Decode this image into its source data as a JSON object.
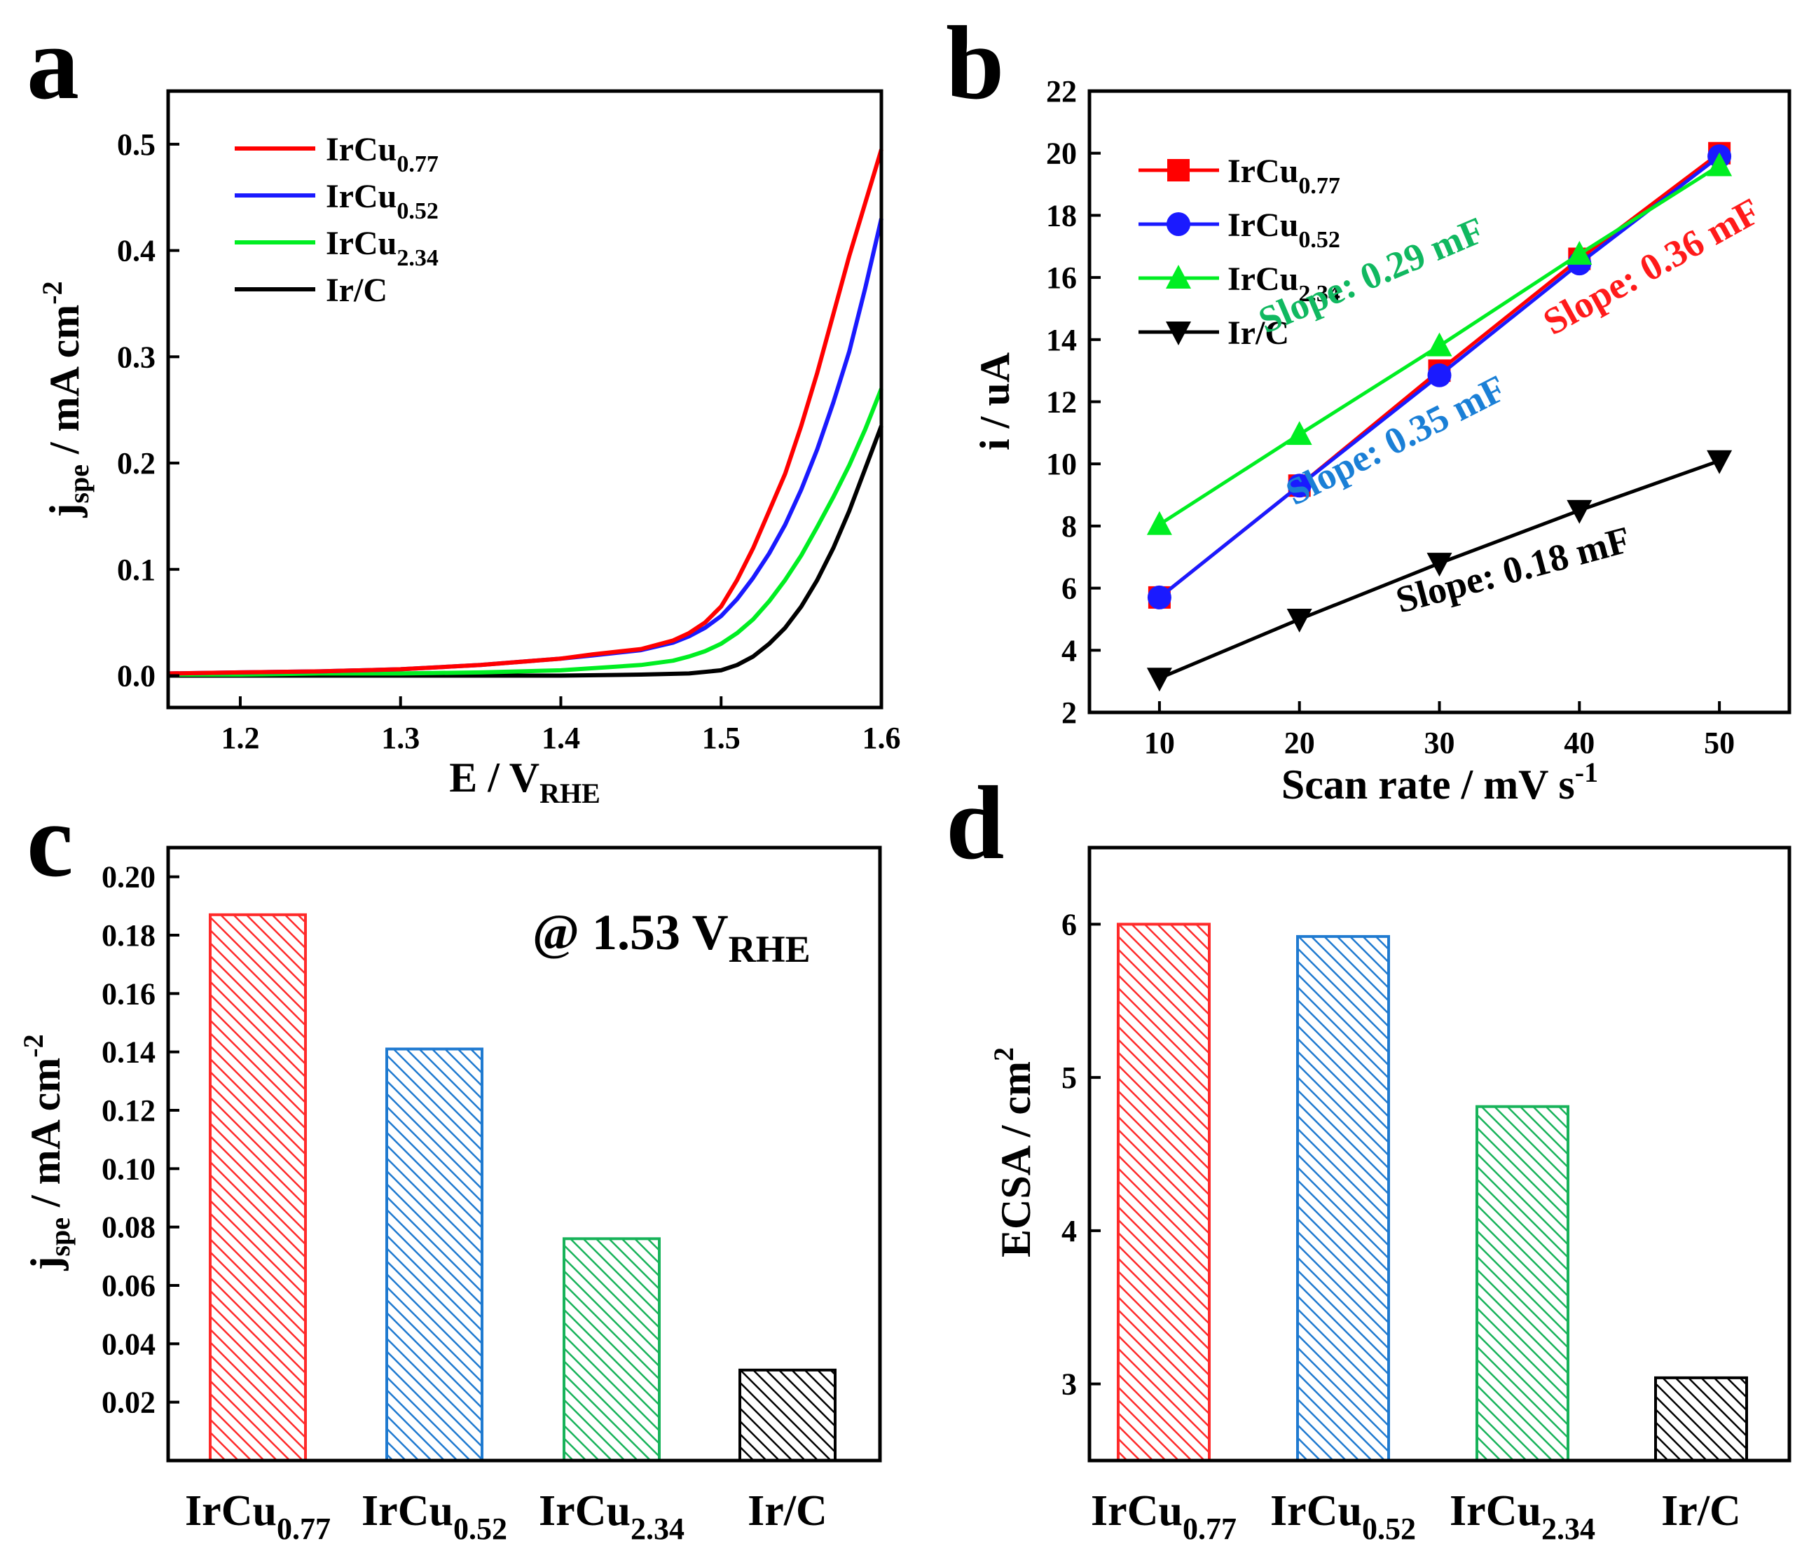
{
  "figure_title": "",
  "colors": {
    "IrCu0.77": "#ff0000",
    "IrCu0.52": "#1a1aff",
    "IrCu2.34": "#00ee22",
    "Ir/C": "#000000",
    "bar_IrCu0.77": "#ff2a2a",
    "bar_IrCu0.52": "#1f7ad0",
    "bar_IrCu2.34": "#18b35a",
    "bar_Ir/C": "#000000",
    "slope_IrCu0.77": "#ff1a1a",
    "slope_IrCu0.52": "#1a7fd6",
    "slope_IrCu2.34": "#10b860",
    "slope_Ir/C": "#000000"
  },
  "chart_data": [
    {
      "panel": "a",
      "type": "line",
      "xlabel": {
        "main": "E / V",
        "sub": "RHE"
      },
      "ylabel": {
        "main": "j",
        "sub": "spe",
        "rest": " / mA cm",
        "sup": "-2"
      },
      "xlim": [
        1.155,
        1.6
      ],
      "ylim": [
        -0.03,
        0.55
      ],
      "xticks": [
        "1.2",
        "1.3",
        "1.4",
        "1.5",
        "1.6"
      ],
      "yticks": [
        "0.0",
        "0.1",
        "0.2",
        "0.3",
        "0.4",
        "0.5"
      ],
      "legend_position": "top-left",
      "series": [
        {
          "name": "IrCu0.77",
          "label_main": "IrCu",
          "label_sub": "0.77",
          "x": [
            1.155,
            1.2,
            1.25,
            1.3,
            1.35,
            1.4,
            1.42,
            1.45,
            1.47,
            1.48,
            1.49,
            1.5,
            1.51,
            1.52,
            1.53,
            1.54,
            1.55,
            1.56,
            1.57,
            1.58,
            1.59,
            1.6
          ],
          "y": [
            0.002,
            0.003,
            0.004,
            0.006,
            0.01,
            0.016,
            0.02,
            0.025,
            0.033,
            0.04,
            0.05,
            0.065,
            0.09,
            0.12,
            0.155,
            0.19,
            0.235,
            0.285,
            0.34,
            0.395,
            0.445,
            0.495
          ]
        },
        {
          "name": "IrCu0.52",
          "label_main": "IrCu",
          "label_sub": "0.52",
          "x": [
            1.155,
            1.2,
            1.25,
            1.3,
            1.35,
            1.4,
            1.42,
            1.45,
            1.47,
            1.48,
            1.49,
            1.5,
            1.51,
            1.52,
            1.53,
            1.54,
            1.55,
            1.56,
            1.57,
            1.58,
            1.59,
            1.6
          ],
          "y": [
            0.002,
            0.003,
            0.004,
            0.006,
            0.01,
            0.016,
            0.019,
            0.024,
            0.031,
            0.037,
            0.045,
            0.056,
            0.072,
            0.092,
            0.115,
            0.142,
            0.175,
            0.213,
            0.257,
            0.305,
            0.365,
            0.43
          ]
        },
        {
          "name": "IrCu2.34",
          "label_main": "IrCu",
          "label_sub": "2.34",
          "x": [
            1.155,
            1.2,
            1.25,
            1.3,
            1.35,
            1.4,
            1.45,
            1.47,
            1.48,
            1.49,
            1.5,
            1.51,
            1.52,
            1.53,
            1.54,
            1.55,
            1.56,
            1.57,
            1.58,
            1.59,
            1.6
          ],
          "y": [
            0.001,
            0.001,
            0.002,
            0.002,
            0.003,
            0.005,
            0.01,
            0.014,
            0.018,
            0.023,
            0.03,
            0.04,
            0.053,
            0.07,
            0.09,
            0.113,
            0.14,
            0.168,
            0.198,
            0.232,
            0.27
          ]
        },
        {
          "name": "Ir/C",
          "label_main": "Ir/C",
          "label_sub": "",
          "x": [
            1.155,
            1.2,
            1.25,
            1.3,
            1.35,
            1.4,
            1.45,
            1.48,
            1.5,
            1.51,
            1.52,
            1.53,
            1.54,
            1.55,
            1.56,
            1.57,
            1.58,
            1.59,
            1.6
          ],
          "y": [
            0.0,
            0.0,
            0.0,
            0.0,
            0.0,
            0.0,
            0.001,
            0.002,
            0.005,
            0.01,
            0.018,
            0.03,
            0.045,
            0.065,
            0.09,
            0.12,
            0.155,
            0.195,
            0.235
          ]
        }
      ]
    },
    {
      "panel": "b",
      "type": "line",
      "xlabel": {
        "main": "Scan rate / mV s",
        "sup": "-1"
      },
      "ylabel": {
        "main": "i / uA"
      },
      "xlim": [
        5,
        55
      ],
      "ylim": [
        2,
        22
      ],
      "xticks": [
        "10",
        "20",
        "30",
        "40",
        "50"
      ],
      "yticks": [
        "2",
        "4",
        "6",
        "8",
        "10",
        "12",
        "14",
        "16",
        "18",
        "20",
        "22"
      ],
      "legend_position": "top-left",
      "series": [
        {
          "name": "IrCu0.77",
          "label_main": "IrCu",
          "label_sub": "0.77",
          "marker": "square",
          "x": [
            10,
            20,
            30,
            40,
            50
          ],
          "y": [
            5.7,
            9.3,
            13.0,
            16.6,
            20.0
          ]
        },
        {
          "name": "IrCu0.52",
          "label_main": "IrCu",
          "label_sub": "0.52",
          "marker": "circle",
          "x": [
            10,
            20,
            30,
            40,
            50
          ],
          "y": [
            5.7,
            9.3,
            12.85,
            16.45,
            19.9
          ]
        },
        {
          "name": "IrCu2.34",
          "label_main": "IrCu",
          "label_sub": "2.34",
          "marker": "triangle-up",
          "x": [
            10,
            20,
            30,
            40,
            50
          ],
          "y": [
            8.05,
            10.95,
            13.8,
            16.75,
            19.6
          ]
        },
        {
          "name": "Ir/C",
          "label_main": "Ir/C",
          "label_sub": "",
          "marker": "triangle-down",
          "x": [
            10,
            20,
            30,
            40,
            50
          ],
          "y": [
            3.1,
            5.0,
            6.8,
            8.5,
            10.1
          ]
        }
      ],
      "annotations": [
        {
          "text": "Slope: 0.29 mF",
          "series": "IrCu2.34",
          "x": 25.5,
          "y": 15.7,
          "angle": -23
        },
        {
          "text": "Slope: 0.35 mF",
          "series": "IrCu0.52",
          "x": 27.3,
          "y": 10.4,
          "angle": -27
        },
        {
          "text": "Slope: 0.36 mF",
          "series": "IrCu0.77",
          "x": 45.6,
          "y": 16.0,
          "angle": -29
        },
        {
          "text": "Slope: 0.18 mF",
          "series": "Ir/C",
          "x": 35.5,
          "y": 6.2,
          "angle": -15
        }
      ]
    },
    {
      "panel": "c",
      "type": "bar",
      "categories": [
        {
          "name": "IrCu0.77",
          "main": "IrCu",
          "sub": "0.77"
        },
        {
          "name": "IrCu0.52",
          "main": "IrCu",
          "sub": "0.52"
        },
        {
          "name": "IrCu2.34",
          "main": "IrCu",
          "sub": "2.34"
        },
        {
          "name": "Ir/C",
          "main": "Ir/C",
          "sub": ""
        }
      ],
      "values": [
        0.187,
        0.141,
        0.076,
        0.031
      ],
      "ylabel": {
        "main": "j",
        "sub": "spe",
        "rest": " / mA cm",
        "sup": "-2"
      },
      "ylim": [
        0.0,
        0.21
      ],
      "yticks": [
        "0.02",
        "0.04",
        "0.06",
        "0.08",
        "0.10",
        "0.12",
        "0.14",
        "0.16",
        "0.18",
        "0.20"
      ],
      "annotation": {
        "main": "@ 1.53 V",
        "sub": "RHE"
      }
    },
    {
      "panel": "d",
      "type": "bar",
      "categories": [
        {
          "name": "IrCu0.77",
          "main": "IrCu",
          "sub": "0.77"
        },
        {
          "name": "IrCu0.52",
          "main": "IrCu",
          "sub": "0.52"
        },
        {
          "name": "IrCu2.34",
          "main": "IrCu",
          "sub": "2.34"
        },
        {
          "name": "Ir/C",
          "main": "Ir/C",
          "sub": ""
        }
      ],
      "values": [
        6.0,
        5.92,
        4.81,
        3.04
      ],
      "ylabel": {
        "main": "ECSA / cm",
        "sup": "2"
      },
      "ylim": [
        2.5,
        6.5
      ],
      "yticks": [
        "3",
        "4",
        "5",
        "6"
      ]
    }
  ]
}
